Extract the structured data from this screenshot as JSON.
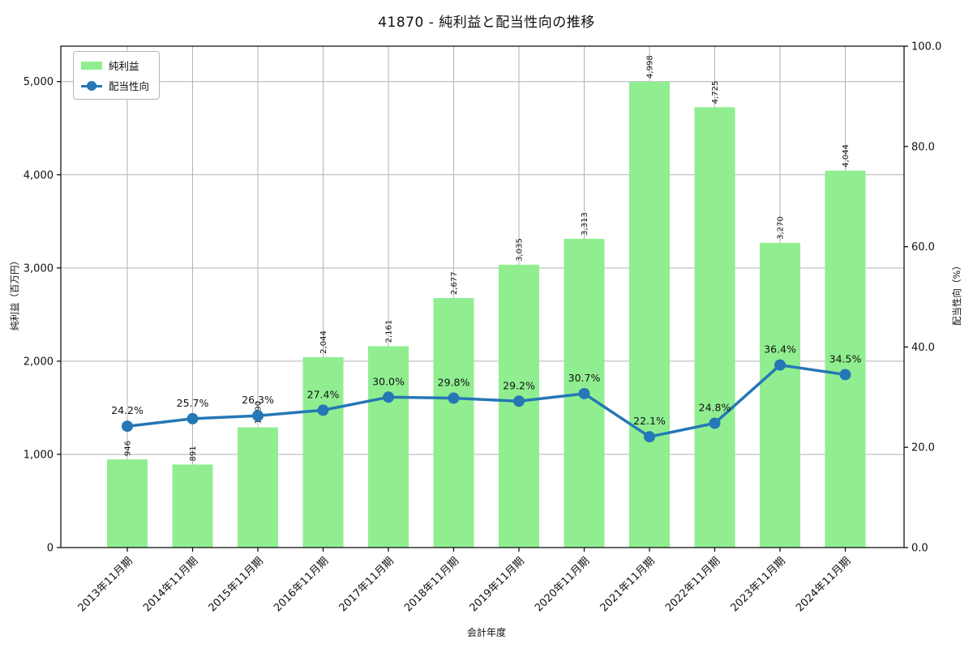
{
  "title": "41870 - 純利益と配当性向の推移",
  "legend": {
    "bar": "純利益",
    "line": "配当性向"
  },
  "chart_data": {
    "type": "bar+line combo",
    "title": "41870 - 純利益と配当性向の推移",
    "xlabel": "会計年度",
    "ylabel_left": "純利益（百万円）",
    "ylabel_right": "配当性向（%）",
    "categories": [
      "2013年11月期",
      "2014年11月期",
      "2015年11月期",
      "2016年11月期",
      "2017年11月期",
      "2018年11月期",
      "2019年11月期",
      "2020年11月期",
      "2021年11月期",
      "2022年11月期",
      "2023年11月期",
      "2024年11月期"
    ],
    "series": [
      {
        "name": "純利益",
        "type": "bar",
        "axis": "left",
        "values": [
          946,
          891,
          1290,
          2044,
          2161,
          2677,
          3035,
          3313,
          4998,
          4725,
          3270,
          4044
        ],
        "labels": [
          "946",
          "891",
          "1,290",
          "2,044",
          "2,161",
          "2,677",
          "3,035",
          "3,313",
          "4,998",
          "4,725",
          "3,270",
          "4,044"
        ]
      },
      {
        "name": "配当性向",
        "type": "line",
        "axis": "right",
        "values": [
          24.2,
          25.7,
          26.3,
          27.4,
          30.0,
          29.8,
          29.2,
          30.7,
          22.1,
          24.8,
          36.4,
          34.5
        ],
        "labels": [
          "24.2%",
          "25.7%",
          "26.3%",
          "27.4%",
          "30.0%",
          "29.8%",
          "29.2%",
          "30.7%",
          "22.1%",
          "24.8%",
          "36.4%",
          "34.5%"
        ]
      }
    ],
    "yticks_left": {
      "values": [
        0,
        1000,
        2000,
        3000,
        4000,
        5000
      ],
      "labels": [
        "0",
        "1,000",
        "2,000",
        "3,000",
        "4,000",
        "5,000"
      ]
    },
    "yticks_right": {
      "values": [
        0,
        20,
        40,
        60,
        80,
        100
      ],
      "labels": [
        "0.0",
        "20.0",
        "40.0",
        "60.0",
        "80.0",
        "100.0"
      ]
    },
    "ylim_left": [
      0,
      5380
    ],
    "ylim_right": [
      0,
      100
    ],
    "grid": true,
    "legend_position": "upper-left",
    "colors": {
      "bar": "#90ee90",
      "line": "#2577b6",
      "line_label": "#3d8ecb",
      "grid": "#b3b3b3",
      "spine": "#000000",
      "background": "#ffffff",
      "text": "#111111"
    }
  }
}
